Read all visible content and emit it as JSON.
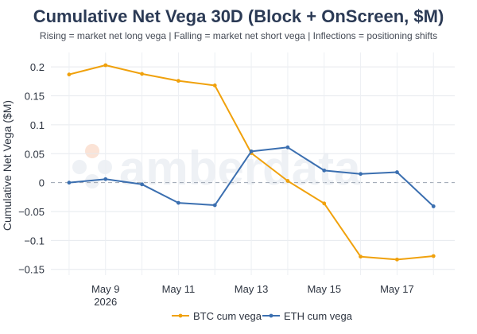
{
  "chart_data": {
    "type": "line",
    "title": "Cumulative Net Vega 30D (Block + OnScreen, $M)",
    "subtitle": "Rising = market net long vega | Falling = market net short vega | Inflections = positioning shifts",
    "ylabel": "Cumulative Net Vega ($M)",
    "xlabel": "",
    "x": [
      "2026-05-08",
      "2026-05-09",
      "2026-05-10",
      "2026-05-11",
      "2026-05-12",
      "2026-05-13",
      "2026-05-14",
      "2026-05-15",
      "2026-05-16",
      "2026-05-17",
      "2026-05-18"
    ],
    "x_ticks": [
      {
        "date": "2026-05-09",
        "label": "May 9",
        "sublabel": "2026"
      },
      {
        "date": "2026-05-11",
        "label": "May 11",
        "sublabel": ""
      },
      {
        "date": "2026-05-13",
        "label": "May 13",
        "sublabel": ""
      },
      {
        "date": "2026-05-15",
        "label": "May 15",
        "sublabel": ""
      },
      {
        "date": "2026-05-17",
        "label": "May 17",
        "sublabel": ""
      }
    ],
    "y_ticks": [
      0.2,
      0.15,
      0.1,
      0.05,
      0,
      -0.05,
      -0.1,
      -0.15
    ],
    "y_tick_labels": [
      "0.2",
      "0.15",
      "0.1",
      "0.05",
      "0",
      "−0.05",
      "−0.1",
      "−0.15"
    ],
    "ylim": [
      -0.16,
      0.225
    ],
    "xlim": [
      "2026-05-07T12:00",
      "2026-05-18T14:00"
    ],
    "grid": true,
    "legend": "bottom",
    "series": [
      {
        "name": "BTC cum vega",
        "color": "#f0a10c",
        "values": [
          0.187,
          0.203,
          0.188,
          0.176,
          0.168,
          0.051,
          0.003,
          -0.036,
          -0.128,
          -0.133,
          -0.127
        ]
      },
      {
        "name": "ETH cum vega",
        "color": "#3b6fb0",
        "values": [
          0.0,
          0.006,
          -0.003,
          -0.035,
          -0.039,
          0.054,
          0.061,
          0.021,
          0.015,
          0.018,
          -0.041
        ]
      }
    ],
    "watermark": "amberdata"
  }
}
